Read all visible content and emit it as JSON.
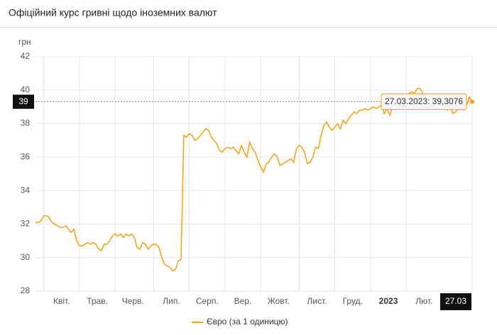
{
  "header": {
    "title": "Офіційний курс гривні щодо іноземних валют"
  },
  "chart_data": {
    "type": "line",
    "y_unit": "грн",
    "series": [
      {
        "name": "Євро (за 1 одиницю)",
        "color": "#f7a11a",
        "values": [
          32.1,
          32.1,
          32.2,
          32.5,
          32.5,
          32.4,
          32.1,
          32.0,
          31.9,
          31.8,
          31.8,
          31.9,
          31.7,
          31.5,
          31.7,
          31.0,
          30.7,
          30.7,
          30.8,
          30.9,
          30.8,
          30.9,
          30.8,
          30.5,
          30.4,
          30.8,
          30.8,
          31.0,
          31.3,
          31.4,
          31.3,
          31.4,
          31.2,
          31.4,
          31.3,
          31.4,
          31.2,
          30.6,
          30.5,
          30.9,
          30.8,
          30.5,
          30.7,
          30.8,
          30.8,
          30.6,
          30.0,
          29.6,
          29.5,
          29.4,
          29.2,
          29.3,
          29.8,
          29.9,
          37.3,
          37.2,
          37.4,
          37.3,
          37.0,
          37.1,
          37.3,
          37.5,
          37.7,
          37.6,
          37.2,
          37.0,
          36.8,
          36.4,
          36.3,
          36.5,
          36.6,
          36.5,
          36.6,
          36.4,
          36.2,
          36.7,
          36.3,
          36.0,
          36.9,
          36.5,
          36.3,
          35.8,
          35.4,
          35.1,
          35.6,
          35.7,
          36.0,
          36.2,
          36.0,
          35.5,
          35.6,
          35.7,
          35.8,
          35.9,
          35.7,
          36.5,
          36.7,
          36.6,
          36.3,
          35.6,
          35.7,
          36.0,
          36.6,
          36.5,
          37.3,
          37.9,
          38.1,
          37.8,
          37.6,
          37.8,
          38.0,
          37.7,
          38.2,
          38.0,
          38.3,
          38.5,
          38.7,
          38.6,
          38.8,
          38.8,
          38.9,
          38.8,
          38.9,
          39.0,
          38.9,
          39.0,
          39.1,
          38.6,
          38.9,
          38.5,
          39.0,
          39.3,
          39.2,
          39.4,
          39.5,
          39.6,
          39.8,
          39.9,
          39.8,
          40.1,
          40.1,
          39.8,
          39.4,
          39.0,
          39.2,
          39.2,
          39.3,
          39.1,
          39.4,
          39.0,
          38.8,
          39.1,
          38.6,
          38.7,
          38.9,
          39.0,
          38.8,
          39.1,
          39.6,
          39.3076
        ]
      }
    ],
    "xlim": [
      0,
      159
    ],
    "xticks": [
      {
        "value": 3,
        "label": "Квіт."
      },
      {
        "value": 16,
        "label": "Трав."
      },
      {
        "value": 29,
        "label": "Черв."
      },
      {
        "value": 43,
        "label": "Лип."
      },
      {
        "value": 56,
        "label": "Серп."
      },
      {
        "value": 69,
        "label": "Вер."
      },
      {
        "value": 82,
        "label": "Жовт."
      },
      {
        "value": 96,
        "label": "Лист."
      },
      {
        "value": 109,
        "label": "Груд."
      },
      {
        "value": 122,
        "label": "2023"
      },
      {
        "value": 135,
        "label": "Лют."
      }
    ],
    "ylim": [
      28,
      42
    ],
    "yticks": [
      28,
      30,
      32,
      34,
      36,
      38,
      40,
      42
    ],
    "grid": true,
    "crosshair": {
      "value": 39.3076,
      "y_label": "39",
      "x_label": "27.03",
      "tooltip": "27.03.2023: 39,3076"
    }
  }
}
